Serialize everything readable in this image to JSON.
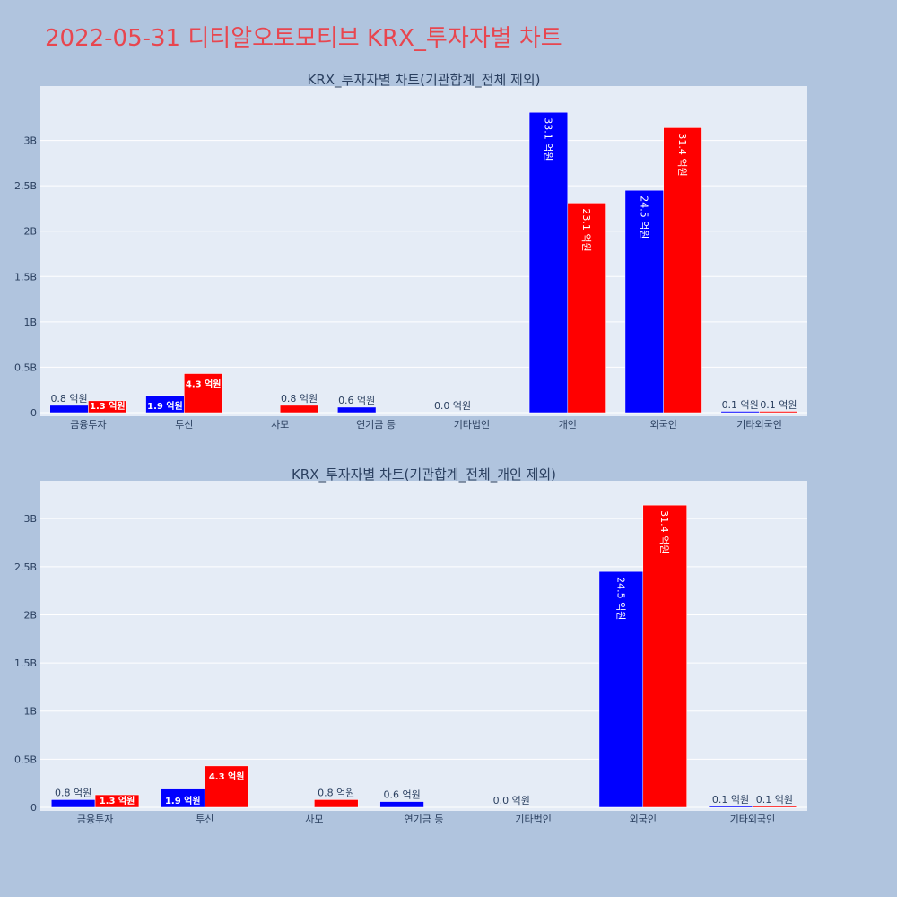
{
  "title": "2022-05-31 디티알오토모티브 KRX_투자자별 차트",
  "colors": {
    "title": "#E8464F",
    "background": "#B0C4DE",
    "plot_bg": "#E5ECF6",
    "series_buy": "#0000FF",
    "series_sell": "#FF0000"
  },
  "chart_data": [
    {
      "type": "bar",
      "title": "KRX_투자자별 차트(기관합계_전체 제외)",
      "categories": [
        "금융투자",
        "투신",
        "사모",
        "연기금 등",
        "기타법인",
        "개인",
        "외국인",
        "기타외국인"
      ],
      "yticks": [
        "0",
        "0.5B",
        "1B",
        "1.5B",
        "2B",
        "2.5B",
        "3B"
      ],
      "ylim": [
        0,
        3500000000
      ],
      "grid": true,
      "series": [
        {
          "color": "#0000FF",
          "values": [
            80000000,
            190000000,
            0,
            60000000,
            0,
            3310000000,
            2450000000,
            10000000
          ],
          "labels": [
            "0.8 억원",
            "1.9 억원",
            "",
            "0.6 억원",
            "0.0 억원",
            "33.1 억원",
            "24.5 억원",
            "0.1 억원"
          ]
        },
        {
          "color": "#FF0000",
          "values": [
            130000000,
            430000000,
            80000000,
            0,
            0,
            2310000000,
            3140000000,
            10000000
          ],
          "labels": [
            "1.3 억원",
            "4.3 억원",
            "0.8 억원",
            "",
            "",
            "23.1 억원",
            "31.4 억원",
            "0.1 억원"
          ]
        }
      ]
    },
    {
      "type": "bar",
      "title": "KRX_투자자별 차트(기관합계_전체_개인 제외)",
      "categories": [
        "금융투자",
        "투신",
        "사모",
        "연기금 등",
        "기타법인",
        "외국인",
        "기타외국인"
      ],
      "yticks": [
        "0",
        "0.5B",
        "1B",
        "1.5B",
        "2B",
        "2.5B",
        "3B"
      ],
      "ylim": [
        0,
        3300000000
      ],
      "grid": true,
      "series": [
        {
          "color": "#0000FF",
          "values": [
            80000000,
            190000000,
            0,
            60000000,
            0,
            2450000000,
            10000000
          ],
          "labels": [
            "0.8 억원",
            "1.9 억원",
            "",
            "0.6 억원",
            "0.0 억원",
            "24.5 억원",
            "0.1 억원"
          ]
        },
        {
          "color": "#FF0000",
          "values": [
            130000000,
            430000000,
            80000000,
            0,
            0,
            3140000000,
            10000000
          ],
          "labels": [
            "1.3 억원",
            "4.3 억원",
            "0.8 억원",
            "",
            "",
            "31.4 억원",
            "0.1 억원"
          ]
        }
      ]
    }
  ]
}
